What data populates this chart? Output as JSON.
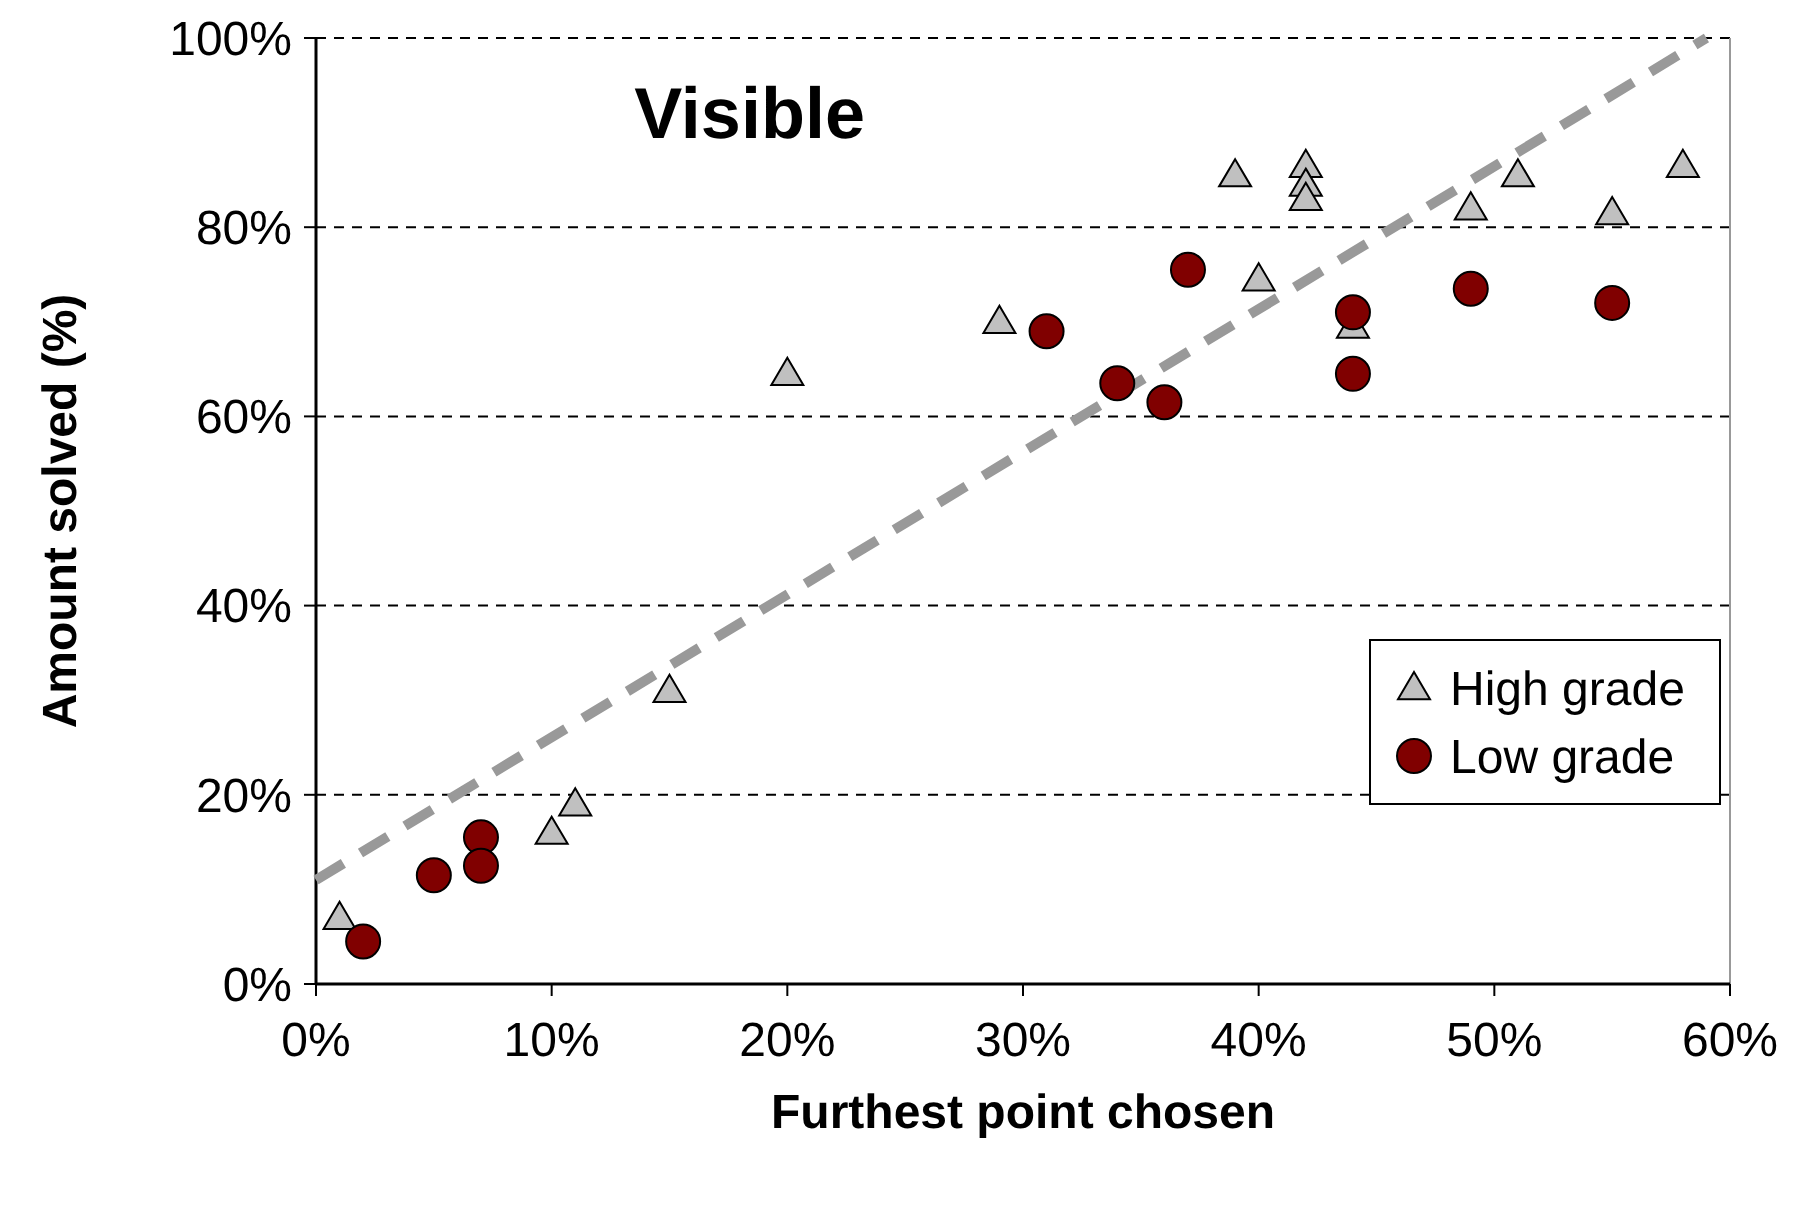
{
  "chart_data": {
    "type": "scatter",
    "title": "Visible",
    "xlabel": "Furthest point chosen",
    "ylabel": "Amount solved (%)",
    "xlim": [
      0,
      60
    ],
    "ylim": [
      0,
      100
    ],
    "xticks": [
      {
        "value": 0,
        "label": "0%"
      },
      {
        "value": 10,
        "label": "10%"
      },
      {
        "value": 20,
        "label": "20%"
      },
      {
        "value": 30,
        "label": "30%"
      },
      {
        "value": 40,
        "label": "40%"
      },
      {
        "value": 50,
        "label": "50%"
      },
      {
        "value": 60,
        "label": "60%"
      }
    ],
    "yticks": [
      {
        "value": 0,
        "label": "0%"
      },
      {
        "value": 20,
        "label": "20%"
      },
      {
        "value": 40,
        "label": "40%"
      },
      {
        "value": 60,
        "label": "60%"
      },
      {
        "value": 80,
        "label": "80%"
      },
      {
        "value": 100,
        "label": "100%"
      }
    ],
    "grid": "y",
    "legend": "right",
    "series": [
      {
        "type": "line",
        "color": "#999999",
        "line_style": "dashed",
        "x": [
          0,
          59
        ],
        "values": [
          11,
          100
        ]
      },
      {
        "name": "High grade",
        "color": "#c0c0c0",
        "marker": "triangle",
        "x": [
          1,
          10,
          11,
          15,
          20,
          29,
          39,
          40,
          42,
          42,
          42,
          44,
          49,
          51,
          55,
          58
        ],
        "values": [
          7,
          16,
          19,
          31,
          64.5,
          70,
          85.5,
          74.5,
          86.5,
          84.5,
          83,
          69.5,
          82,
          85.5,
          81.5,
          86.5
        ]
      },
      {
        "name": "Low grade",
        "color": "#800000",
        "marker": "circle",
        "x": [
          2,
          5,
          7,
          7,
          31,
          34,
          37,
          36,
          44,
          44,
          49,
          55
        ],
        "values": [
          4.5,
          11.5,
          15.5,
          12.5,
          69,
          63.5,
          75.5,
          61.5,
          71,
          64.5,
          73.5,
          72
        ]
      }
    ]
  }
}
